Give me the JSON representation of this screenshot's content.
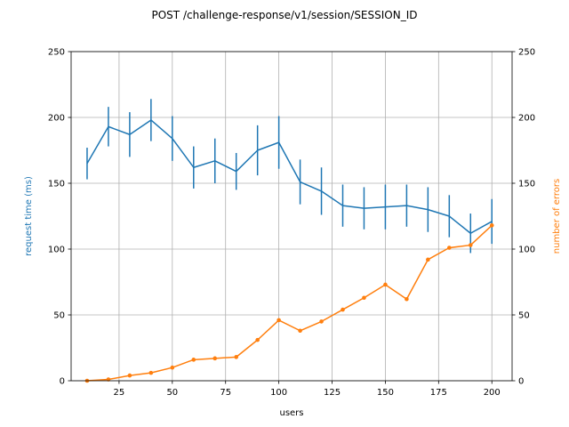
{
  "chart_data": {
    "type": "line",
    "title": "POST /challenge-response/v1/session/SESSION_ID",
    "xlabel": "users",
    "ylabel_left": "request time (ms)",
    "ylabel_right": "number of errors",
    "xlim": [
      2.5,
      209.5
    ],
    "ylim_left": [
      0,
      250
    ],
    "ylim_right": [
      0,
      250
    ],
    "xticks": [
      25,
      50,
      75,
      100,
      125,
      150,
      175,
      200
    ],
    "yticks": [
      0,
      50,
      100,
      150,
      200,
      250
    ],
    "grid": true,
    "colors": {
      "request_time": "#1f77b4",
      "errors": "#ff7f0e"
    },
    "x": [
      10,
      20,
      30,
      40,
      50,
      60,
      70,
      80,
      90,
      100,
      110,
      120,
      130,
      140,
      150,
      160,
      170,
      180,
      190,
      200
    ],
    "series": [
      {
        "axis": "left",
        "values": [
          165,
          193,
          187,
          198,
          184,
          162,
          167,
          159,
          175,
          181,
          151,
          144,
          133,
          131,
          132,
          133,
          130,
          125,
          112,
          121
        ],
        "error": [
          12,
          15,
          17,
          16,
          17,
          16,
          17,
          14,
          19,
          20,
          17,
          18,
          16,
          16,
          17,
          16,
          17,
          16,
          15,
          17
        ]
      },
      {
        "axis": "right",
        "values": [
          0,
          1,
          4,
          6,
          10,
          16,
          17,
          18,
          31,
          46,
          38,
          45,
          54,
          63,
          73,
          62,
          92,
          101,
          103,
          118
        ]
      }
    ]
  }
}
